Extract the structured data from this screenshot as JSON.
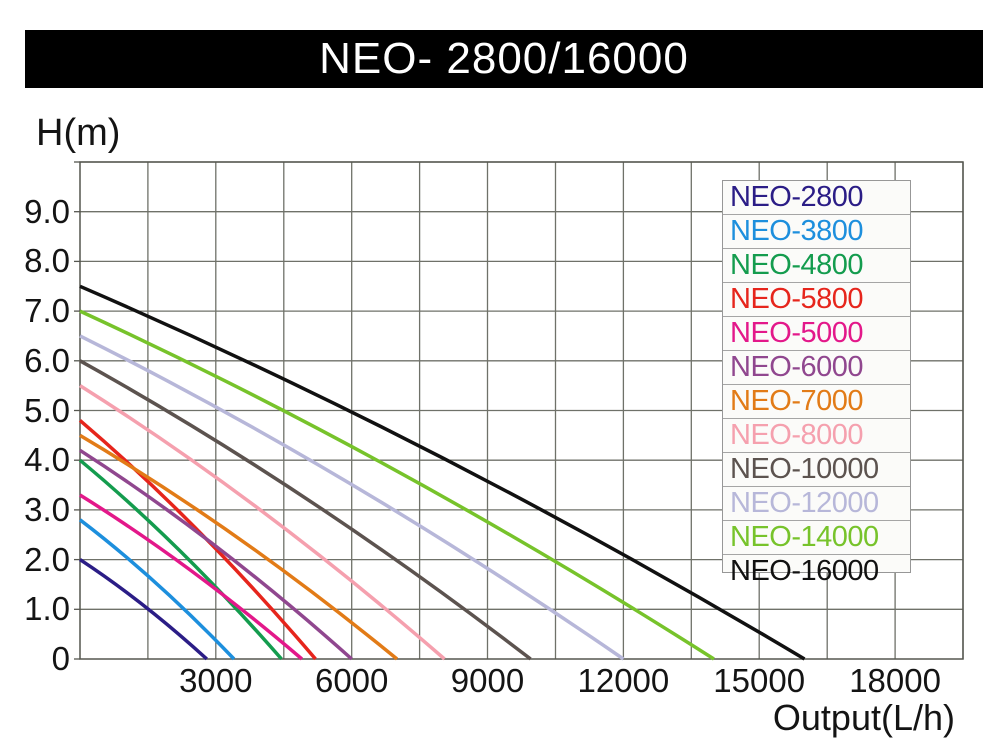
{
  "title": "NEO- 2800/16000",
  "chart_data": {
    "type": "line",
    "title": "NEO- 2800/16000",
    "xlabel": "Output(L/h)",
    "ylabel": "H(m)",
    "x_unit": "L/h",
    "y_unit": "m",
    "xlim": [
      0,
      19500
    ],
    "ylim": [
      0,
      10
    ],
    "grid": true,
    "x_grid_step": 1500,
    "y_grid_step": 1,
    "legend_position": "upper right",
    "x_ticks": [
      {
        "value": 3000,
        "label": "3000"
      },
      {
        "value": 6000,
        "label": "6000"
      },
      {
        "value": 9000,
        "label": "9000"
      },
      {
        "value": 12000,
        "label": "12000"
      },
      {
        "value": 15000,
        "label": "15000"
      },
      {
        "value": 18000,
        "label": "18000"
      }
    ],
    "y_ticks": [
      {
        "value": 9,
        "label": "9.0"
      },
      {
        "value": 8,
        "label": "8.0"
      },
      {
        "value": 7,
        "label": "7.0"
      },
      {
        "value": 6,
        "label": "6.0"
      },
      {
        "value": 5,
        "label": "5.0"
      },
      {
        "value": 4,
        "label": "4.0"
      },
      {
        "value": 3,
        "label": "3.0"
      },
      {
        "value": 2,
        "label": "2.0"
      },
      {
        "value": 1,
        "label": "1.0"
      },
      {
        "value": 0,
        "label": "0"
      }
    ],
    "series": [
      {
        "name": "NEO-2800",
        "color": "#2b1d86",
        "max_head_m": 2.0,
        "max_flow_lh": 2800,
        "ctrl": [
          1400,
          1.16
        ],
        "points": [
          [
            0,
            2.0
          ],
          [
            1400,
            1.1
          ],
          [
            2800,
            0
          ]
        ]
      },
      {
        "name": "NEO-3800",
        "color": "#1d8fdd",
        "max_head_m": 2.8,
        "max_flow_lh": 3400,
        "ctrl": [
          1700,
          1.62
        ],
        "points": [
          [
            0,
            2.8
          ],
          [
            1700,
            1.5
          ],
          [
            3400,
            0
          ]
        ]
      },
      {
        "name": "NEO-4800",
        "color": "#149c4e",
        "max_head_m": 4.0,
        "max_flow_lh": 4450,
        "ctrl": [
          2225,
          2.32
        ],
        "points": [
          [
            0,
            4.0
          ],
          [
            2225,
            2.2
          ],
          [
            4450,
            0
          ]
        ]
      },
      {
        "name": "NEO-5800",
        "color": "#e6251c",
        "max_head_m": 4.8,
        "max_flow_lh": 5200,
        "ctrl": [
          2600,
          2.78
        ],
        "points": [
          [
            0,
            4.8
          ],
          [
            2600,
            2.6
          ],
          [
            5200,
            0
          ]
        ]
      },
      {
        "name": "NEO-5000",
        "color": "#e3188a",
        "max_head_m": 3.3,
        "max_flow_lh": 4900,
        "ctrl": [
          2450,
          1.91
        ],
        "points": [
          [
            0,
            3.3
          ],
          [
            2450,
            1.8
          ],
          [
            4900,
            0
          ]
        ]
      },
      {
        "name": "NEO-6000",
        "color": "#90478f",
        "max_head_m": 4.2,
        "max_flow_lh": 6000,
        "ctrl": [
          3000,
          2.44
        ],
        "points": [
          [
            0,
            4.2
          ],
          [
            3000,
            2.3
          ],
          [
            6000,
            0
          ]
        ]
      },
      {
        "name": "NEO-7000",
        "color": "#e27b17",
        "max_head_m": 4.5,
        "max_flow_lh": 7000,
        "ctrl": [
          3500,
          2.61
        ],
        "points": [
          [
            0,
            4.5
          ],
          [
            3500,
            2.4
          ],
          [
            7000,
            0
          ]
        ]
      },
      {
        "name": "NEO-8000",
        "color": "#f5a0ae",
        "max_head_m": 5.5,
        "max_flow_lh": 8050,
        "ctrl": [
          4025,
          3.19
        ],
        "points": [
          [
            0,
            5.5
          ],
          [
            4025,
            3.0
          ],
          [
            8050,
            0
          ]
        ]
      },
      {
        "name": "NEO-10000",
        "color": "#5c534f",
        "max_head_m": 6.0,
        "max_flow_lh": 9950,
        "ctrl": [
          4975,
          3.48
        ],
        "points": [
          [
            0,
            6.0
          ],
          [
            4975,
            3.2
          ],
          [
            9950,
            0
          ]
        ]
      },
      {
        "name": "NEO-12000",
        "color": "#b7b7d9",
        "max_head_m": 6.5,
        "max_flow_lh": 12000,
        "ctrl": [
          6000,
          3.77
        ],
        "points": [
          [
            0,
            6.5
          ],
          [
            6000,
            3.5
          ],
          [
            12000,
            0
          ]
        ]
      },
      {
        "name": "NEO-14000",
        "color": "#77c32b",
        "max_head_m": 7.0,
        "max_flow_lh": 14000,
        "ctrl": [
          7000,
          4.06
        ],
        "points": [
          [
            0,
            7.0
          ],
          [
            7000,
            3.8
          ],
          [
            14000,
            0
          ]
        ]
      },
      {
        "name": "NEO-16000",
        "color": "#111111",
        "max_head_m": 7.5,
        "max_flow_lh": 16000,
        "ctrl": [
          8000,
          4.35
        ],
        "points": [
          [
            0,
            7.5
          ],
          [
            8000,
            4.1
          ],
          [
            16000,
            0
          ]
        ]
      }
    ]
  },
  "colors": {
    "title_bar_bg": "#000000",
    "title_text": "#ffffff",
    "grid": "#6f7169",
    "plot_border": "#55564f",
    "legend_border": "#979797",
    "legend_bg": "#fbfbf9"
  }
}
